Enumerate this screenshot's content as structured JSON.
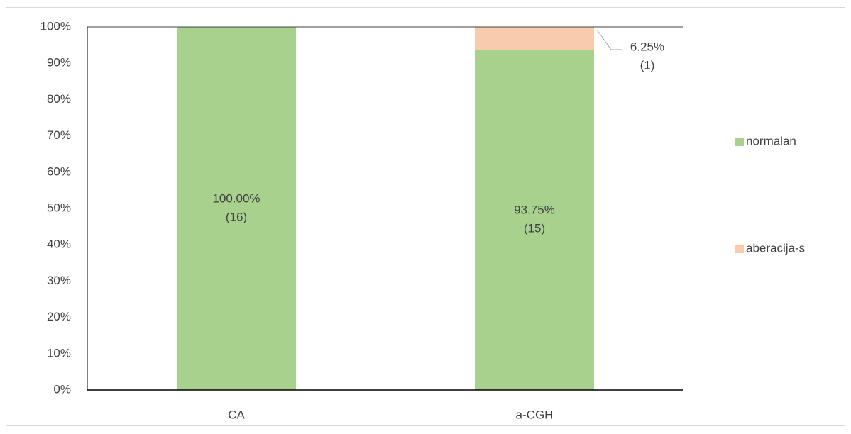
{
  "chart_data": {
    "type": "stacked_bar",
    "categories": [
      "CA",
      "a-CGH"
    ],
    "series": [
      {
        "name": "normalan",
        "color": "#a9d18e",
        "values": [
          100,
          93.75
        ],
        "value_labels": [
          "100.00%",
          "93.75%"
        ],
        "count_labels": [
          "(16)",
          "(15)"
        ]
      },
      {
        "name": "aberacija-s",
        "color": "#f8cbad",
        "values": [
          0,
          6.25
        ],
        "value_labels": [
          null,
          "6.25%"
        ],
        "count_labels": [
          null,
          "(1)"
        ]
      }
    ],
    "ylim": [
      0,
      100
    ],
    "yticks": [
      {
        "value": 0,
        "label": "0%"
      },
      {
        "value": 10,
        "label": "10%"
      },
      {
        "value": 20,
        "label": "20%"
      },
      {
        "value": 30,
        "label": "30%"
      },
      {
        "value": 40,
        "label": "40%"
      },
      {
        "value": 50,
        "label": "50%"
      },
      {
        "value": 60,
        "label": "60%"
      },
      {
        "value": 70,
        "label": "70%"
      },
      {
        "value": 80,
        "label": "80%"
      },
      {
        "value": 90,
        "label": "90%"
      },
      {
        "value": 100,
        "label": "100%"
      }
    ],
    "grid": false,
    "legend": "right"
  }
}
